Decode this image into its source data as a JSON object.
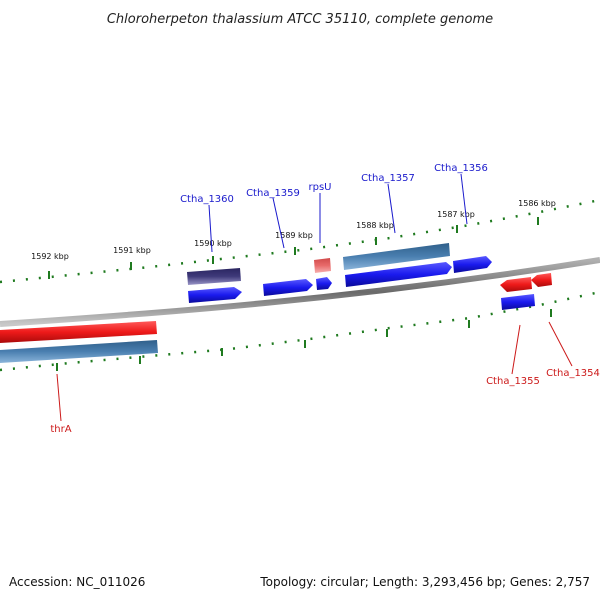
{
  "title": "Chloroherpeton thalassium ATCC 35110, complete genome",
  "accession": "Accession: NC_011026",
  "topology": "Topology: circular; Length: 3,293,456 bp; Genes: 2,757",
  "colors": {
    "backbone": "#8a8a8a",
    "tick": "#1f7a1f",
    "gene_plus": "#1a1aee",
    "gene_minus": "#ee1a1a",
    "cds_plus": "#4a7fb0",
    "cds_minus_dark": "#3f3a7a",
    "rna_pink": "#e86a6a",
    "label_plus": "#1a1acc",
    "label_minus": "#cc1a1a"
  },
  "ticks": [
    {
      "label": "1592 kbp"
    },
    {
      "label": "1591 kbp"
    },
    {
      "label": "1590 kbp"
    },
    {
      "label": "1589 kbp"
    },
    {
      "label": "1588 kbp"
    },
    {
      "label": "1587 kbp"
    },
    {
      "label": "1586 kbp"
    }
  ],
  "gene_labels": [
    {
      "name": "Ctha_1360",
      "strand": "plus"
    },
    {
      "name": "Ctha_1359",
      "strand": "plus"
    },
    {
      "name": "rpsU",
      "strand": "plus"
    },
    {
      "name": "Ctha_1357",
      "strand": "plus"
    },
    {
      "name": "Ctha_1356",
      "strand": "plus"
    },
    {
      "name": "Ctha_1355",
      "strand": "minus"
    },
    {
      "name": "Ctha_1354",
      "strand": "minus"
    },
    {
      "name": "thrA",
      "strand": "minus"
    }
  ]
}
